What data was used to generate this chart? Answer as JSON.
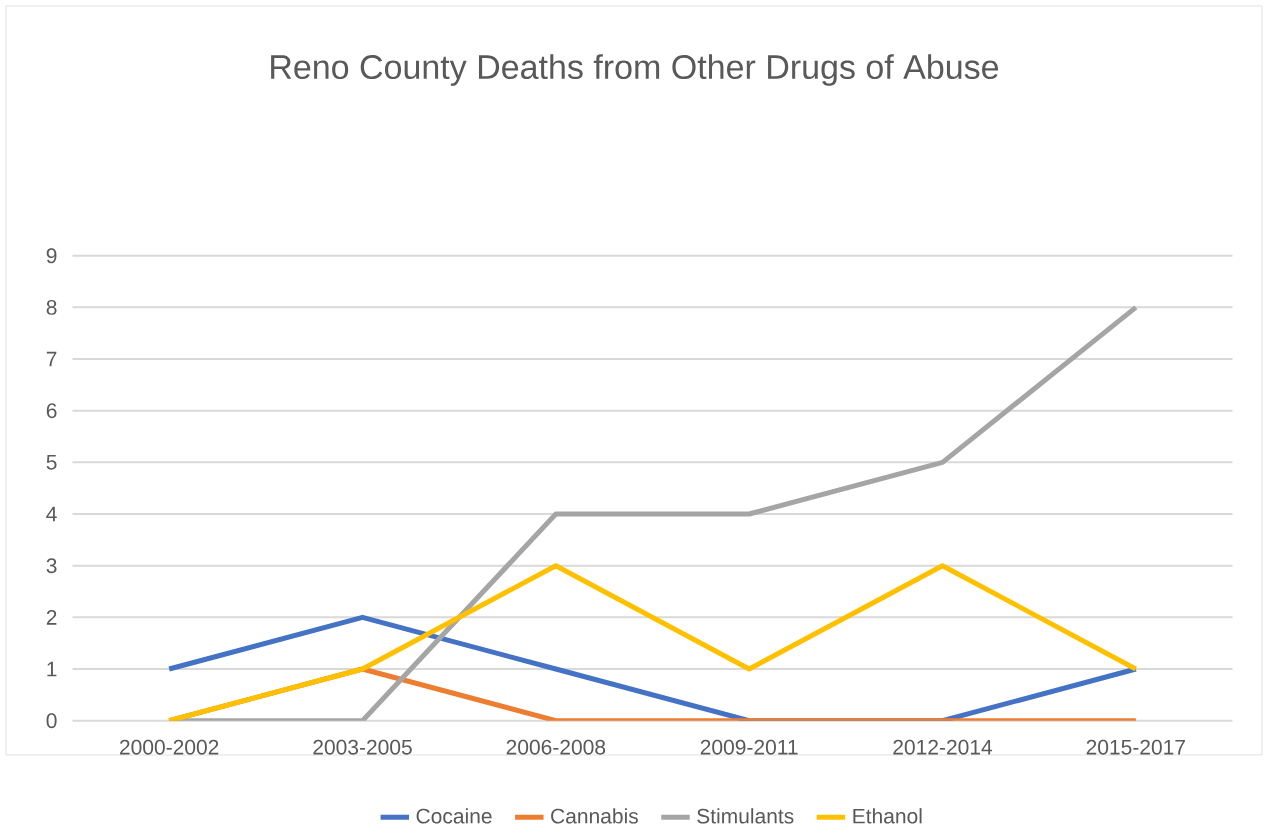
{
  "chart_data": {
    "type": "line",
    "title": "Reno County Deaths from Other Drugs of Abuse",
    "categories": [
      "2000-2002",
      "2003-2005",
      "2006-2008",
      "2009-2011",
      "2012-2014",
      "2015-2017"
    ],
    "series": [
      {
        "name": "Cocaine",
        "color": "#4472c4",
        "values": [
          1,
          2,
          1,
          0,
          0,
          1
        ]
      },
      {
        "name": "Cannabis",
        "color": "#ed7d31",
        "values": [
          0,
          1,
          0,
          0,
          0,
          0
        ]
      },
      {
        "name": "Stimulants",
        "color": "#a5a5a5",
        "values": [
          0,
          0,
          4,
          4,
          5,
          8
        ]
      },
      {
        "name": "Ethanol",
        "color": "#ffc000",
        "values": [
          0,
          1,
          3,
          1,
          3,
          1
        ]
      }
    ],
    "ylim": [
      0,
      9
    ],
    "yticks": [
      0,
      1,
      2,
      3,
      4,
      5,
      6,
      7,
      8,
      9
    ],
    "grid": "y",
    "legend": "bottom",
    "marker": "none",
    "line_style": "solid"
  }
}
